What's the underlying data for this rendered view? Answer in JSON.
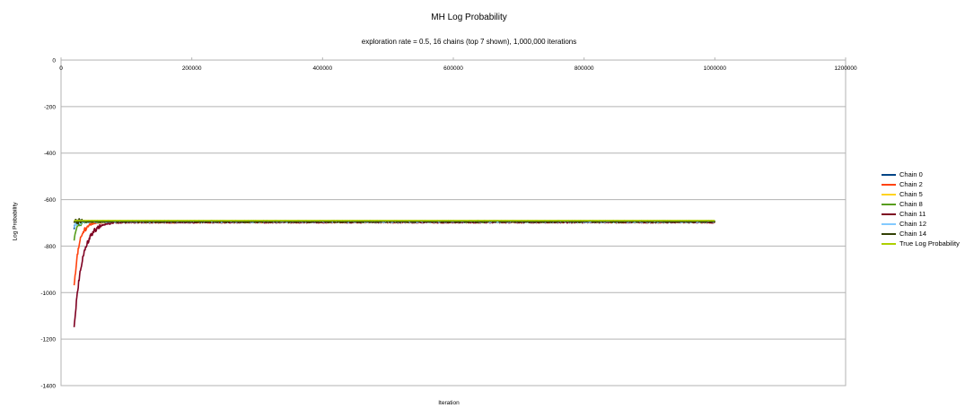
{
  "chart_data": {
    "type": "line",
    "title": "MH Log Probability",
    "subtitle": "exploration rate = 0.5, 16 chains (top 7 shown), 1,000,000 iterations",
    "xlabel": "Iteration",
    "ylabel": "Log Probability",
    "xlim": [
      0,
      1200000
    ],
    "ylim": [
      -1400,
      0
    ],
    "xticks": [
      "0",
      "200000",
      "400000",
      "600000",
      "800000",
      "1000000",
      "1200000"
    ],
    "yticks": [
      "0",
      "-200",
      "-400",
      "-600",
      "-800",
      "-1000",
      "-1200",
      "-1400"
    ],
    "grid": "horizontal",
    "legend_position": "right",
    "series": [
      {
        "name": "Chain 0",
        "color": "#004586",
        "start_iter": 20000,
        "start_value": -725,
        "converged_value": -694
      },
      {
        "name": "Chain 2",
        "color": "#ff420e",
        "start_iter": 20000,
        "start_value": -975,
        "converged_value": -697
      },
      {
        "name": "Chain 5",
        "color": "#ffd320",
        "start_iter": 20000,
        "start_value": -690,
        "converged_value": -695
      },
      {
        "name": "Chain 8",
        "color": "#579d1c",
        "start_iter": 20000,
        "start_value": -770,
        "converged_value": -696
      },
      {
        "name": "Chain 11",
        "color": "#7e0021",
        "start_iter": 20000,
        "start_value": -1155,
        "converged_value": -697
      },
      {
        "name": "Chain 12",
        "color": "#83caff",
        "start_iter": 20000,
        "start_value": -720,
        "converged_value": -695
      },
      {
        "name": "Chain 14",
        "color": "#314004",
        "start_iter": 20000,
        "start_value": -692,
        "converged_value": -694
      },
      {
        "name": "True Log Probability",
        "color": "#aecf00",
        "start_iter": 20000,
        "start_value": -690,
        "converged_value": -690
      }
    ],
    "end_iter": 1000000
  }
}
